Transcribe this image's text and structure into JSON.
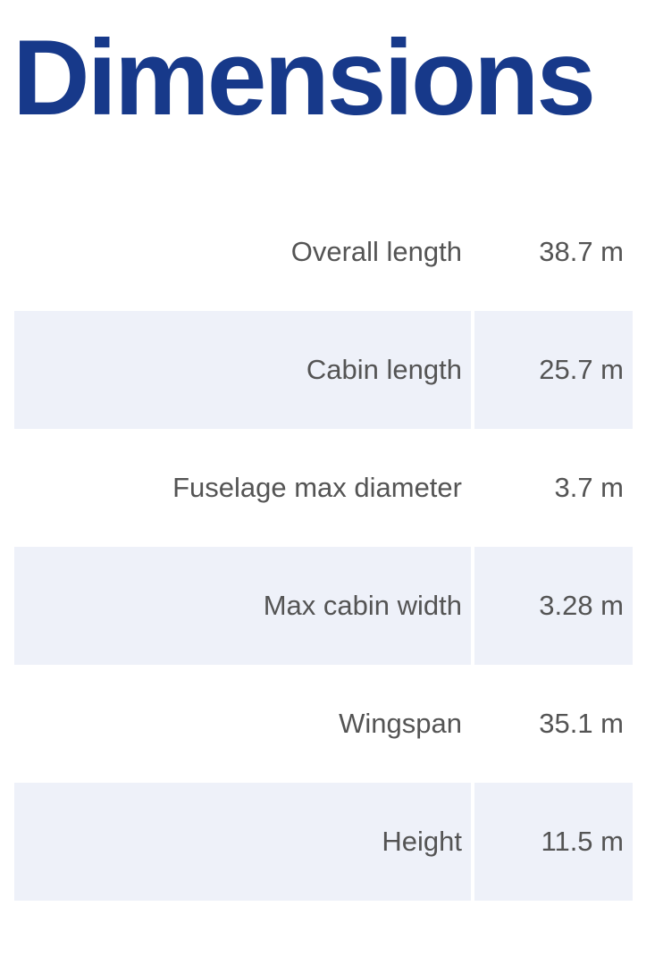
{
  "page": {
    "title": "Dimensions"
  },
  "specs": [
    {
      "label": "Overall length",
      "value": "38.7 m"
    },
    {
      "label": "Cabin length",
      "value": "25.7 m"
    },
    {
      "label": "Fuselage max diameter",
      "value": "3.7 m"
    },
    {
      "label": "Max cabin width",
      "value": "3.28 m"
    },
    {
      "label": "Wingspan",
      "value": "35.1 m"
    },
    {
      "label": "Height",
      "value": "11.5 m"
    }
  ],
  "colors": {
    "title": "#17398a",
    "text": "#545454",
    "row_shade": "#eef1f9",
    "background": "#ffffff"
  }
}
